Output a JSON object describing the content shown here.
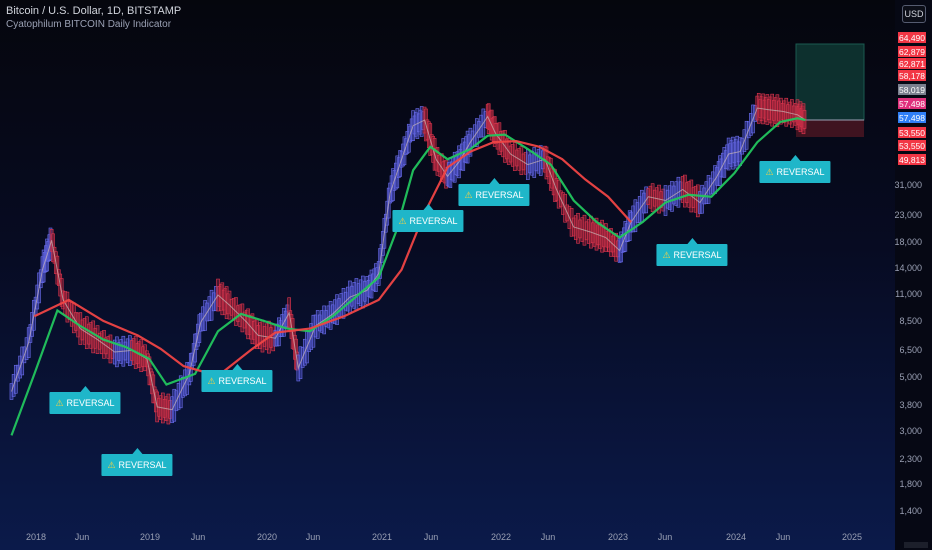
{
  "header": {
    "symbol": "Bitcoin / U.S. Dollar, 1D, BITSTAMP",
    "indicator": "Cyatophilum BITCOIN Daily Indicator"
  },
  "currency_button": "USD",
  "chart_data": {
    "type": "line",
    "scale": "log",
    "xlabel": "",
    "ylabel": "",
    "x_ticks": [
      "2018",
      "Jun",
      "2019",
      "Jun",
      "2020",
      "Jun",
      "2021",
      "Jun",
      "2022",
      "Jun",
      "2023",
      "Jun",
      "2024",
      "Jun",
      "2025"
    ],
    "y_ticks": [
      "31,000",
      "23,000",
      "18,000",
      "14,000",
      "11,000",
      "8,500",
      "6,500",
      "5,000",
      "3,800",
      "3,000",
      "2,300",
      "1,800",
      "1,400"
    ],
    "price_tags": [
      {
        "label": "64,490",
        "color": "#f23645"
      },
      {
        "label": "62,879",
        "color": "#f23645"
      },
      {
        "label": "62,871",
        "color": "#f23645"
      },
      {
        "label": "58,178",
        "color": "#f23645"
      },
      {
        "label": "58,019",
        "color": "#7a7f8e"
      },
      {
        "label": "57,498",
        "color": "#e0307c"
      },
      {
        "label": "57,498",
        "color": "#2f7ff6"
      },
      {
        "label": "53,550",
        "color": "#f23645"
      },
      {
        "label": "53,550",
        "color": "#f23645"
      },
      {
        "label": "49,813",
        "color": "#f23645"
      }
    ],
    "annotations": [
      {
        "text": "REVERSAL",
        "date": "2018.42"
      },
      {
        "text": "REVERSAL",
        "date": "2018.92"
      },
      {
        "text": "REVERSAL",
        "date": "2019.75"
      },
      {
        "text": "REVERSAL",
        "date": "2021.42"
      },
      {
        "text": "REVERSAL",
        "date": "2022.0"
      },
      {
        "text": "REVERSAL",
        "date": "2023.58"
      },
      {
        "text": "REVERSAL",
        "date": "2024.67"
      }
    ],
    "series": [
      {
        "color": "#c9b7b7",
        "x": [
          2017.7,
          2017.85,
          2017.97,
          2018.05,
          2018.15,
          2018.3,
          2018.45,
          2018.6,
          2018.75,
          2018.88,
          2018.97,
          2019.1,
          2019.25,
          2019.35,
          2019.5,
          2019.6,
          2019.75,
          2019.85,
          2020.0,
          2020.12,
          2020.2,
          2020.35,
          2020.5,
          2020.65,
          2020.8,
          2020.9,
          2021.0,
          2021.1,
          2021.2,
          2021.3,
          2021.4,
          2021.5,
          2021.6,
          2021.7,
          2021.85,
          2021.92,
          2022.05,
          2022.2,
          2022.35,
          2022.45,
          2022.6,
          2022.75,
          2022.88,
          2023.0,
          2023.1,
          2023.25,
          2023.4,
          2023.55,
          2023.7,
          2023.85,
          2023.95,
          2024.05,
          2024.2,
          2024.3,
          2024.42,
          2024.55,
          2024.62
        ],
        "y": [
          4400,
          7000,
          14000,
          18500,
          10500,
          8000,
          7200,
          6400,
          6500,
          6000,
          3800,
          3700,
          5200,
          8500,
          11000,
          10000,
          8500,
          7500,
          7300,
          9300,
          5500,
          8200,
          9200,
          10800,
          11500,
          13500,
          29000,
          40000,
          55000,
          58000,
          40000,
          34000,
          39000,
          47000,
          60000,
          51000,
          42000,
          38000,
          40000,
          30000,
          21000,
          20000,
          19000,
          16800,
          22000,
          28000,
          27000,
          30000,
          26500,
          34000,
          42000,
          43000,
          65000,
          64000,
          63000,
          61000,
          58000
        ]
      },
      {
        "color": "#22c55e",
        "x": [
          2017.7,
          2017.9,
          2018.1,
          2018.3,
          2018.5,
          2018.7,
          2018.9,
          2019.05,
          2019.3,
          2019.5,
          2019.7,
          2019.9,
          2020.1,
          2020.3,
          2020.5,
          2020.7,
          2020.9,
          2021.05,
          2021.2,
          2021.35,
          2021.5,
          2021.7,
          2021.85,
          2022.0,
          2022.2,
          2022.4,
          2022.6,
          2022.8,
          2023.0,
          2023.2,
          2023.4,
          2023.6,
          2023.8,
          2024.0,
          2024.2,
          2024.4,
          2024.55,
          2024.62
        ],
        "y": [
          2900,
          5200,
          9500,
          8200,
          7200,
          6700,
          6000,
          4700,
          5200,
          7800,
          9200,
          8600,
          8000,
          7800,
          9000,
          10800,
          13000,
          20000,
          36000,
          45000,
          40000,
          44000,
          50000,
          50500,
          44000,
          38000,
          27000,
          22000,
          19000,
          22000,
          26500,
          28500,
          28000,
          35000,
          47000,
          57000,
          59000,
          58000
        ]
      },
      {
        "color": "#ef4444",
        "x": [
          2017.9,
          2018.2,
          2018.5,
          2018.8,
          2019.0,
          2019.2,
          2019.5,
          2019.8,
          2020.0,
          2020.3,
          2020.6,
          2020.9,
          2021.1,
          2021.3,
          2021.5,
          2021.7,
          2021.9,
          2022.1,
          2022.3,
          2022.5,
          2022.7,
          2022.9,
          2023.1
        ],
        "y": [
          9000,
          10500,
          8600,
          7500,
          6600,
          5600,
          5100,
          6600,
          7700,
          8000,
          9000,
          10500,
          14000,
          24000,
          37000,
          43000,
          47000,
          47500,
          45000,
          40000,
          33000,
          28000,
          22000
        ]
      }
    ]
  }
}
